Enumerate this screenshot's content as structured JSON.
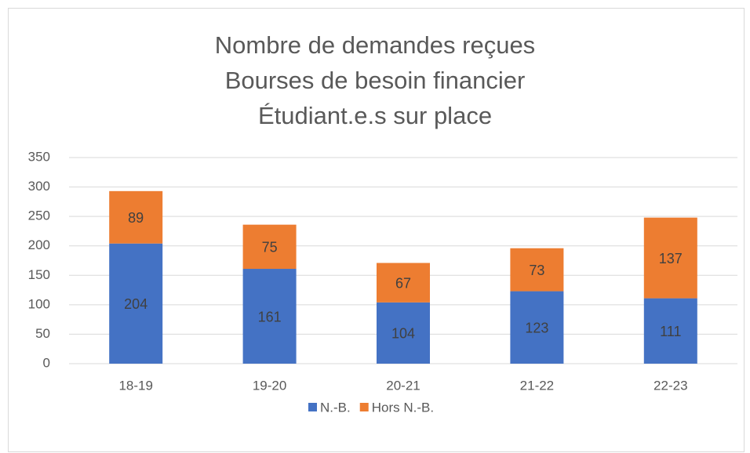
{
  "chart_data": {
    "type": "bar",
    "stacked": true,
    "title": [
      "Nombre de demandes reçues",
      "Bourses de besoin financier",
      "Étudiant.e.s sur place"
    ],
    "categories": [
      "18-19",
      "19-20",
      "20-21",
      "21-22",
      "22-23"
    ],
    "series": [
      {
        "name": "N.-B.",
        "color": "#4472c4",
        "values": [
          204,
          161,
          104,
          123,
          111
        ]
      },
      {
        "name": "Hors N.-B.",
        "color": "#ed7d31",
        "values": [
          89,
          75,
          67,
          73,
          137
        ]
      }
    ],
    "ylim": [
      0,
      350
    ],
    "yticks": [
      0,
      50,
      100,
      150,
      200,
      250,
      300,
      350
    ],
    "grid": true,
    "legend": "bottom"
  }
}
